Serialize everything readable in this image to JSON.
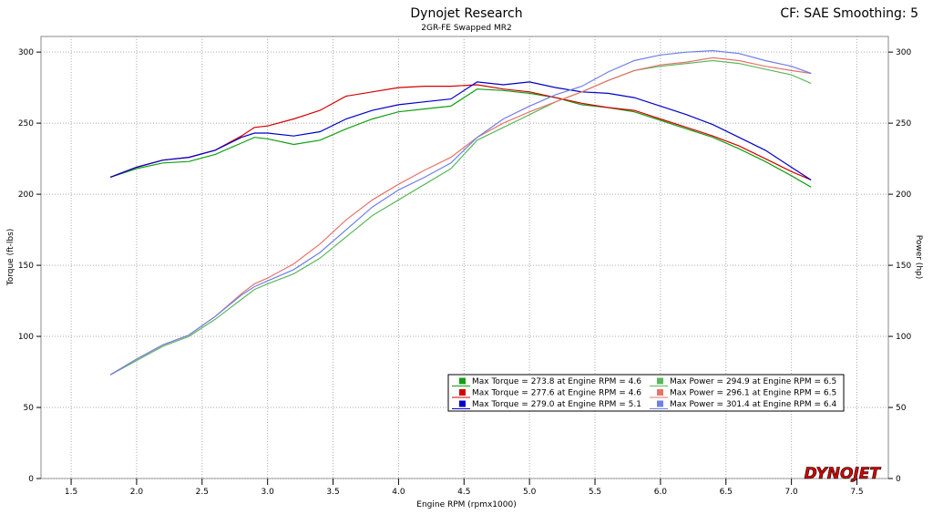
{
  "chart_data": {
    "type": "line",
    "title": "Dynojet Research",
    "subtitle": "2GR-FE Swapped MR2",
    "header_right": "CF: SAE Smoothing: 5",
    "watermark": "DYNOJET",
    "x_label": "Engine RPM (rpmx1000)",
    "y_label": "Torque (ft-lbs)",
    "y2_label": "Power (hp)",
    "xlim": [
      1.27,
      7.74
    ],
    "ylim": [
      0,
      311
    ],
    "y2lim": [
      0,
      311
    ],
    "xticks": [
      {
        "value": 1.5,
        "label": "1.5"
      },
      {
        "value": 2,
        "label": "2.0"
      },
      {
        "value": 2.5,
        "label": "2.5"
      },
      {
        "value": 3,
        "label": "3.0"
      },
      {
        "value": 3.5,
        "label": "3.5"
      },
      {
        "value": 4,
        "label": "4.0"
      },
      {
        "value": 4.5,
        "label": "4.5"
      },
      {
        "value": 5,
        "label": "5.0"
      },
      {
        "value": 5.5,
        "label": "5.5"
      },
      {
        "value": 6,
        "label": "6.0"
      },
      {
        "value": 6.5,
        "label": "6.5"
      },
      {
        "value": 7,
        "label": "7.0"
      },
      {
        "value": 7.5,
        "label": "7.5"
      }
    ],
    "yticks": [
      0,
      50,
      100,
      150,
      200,
      250,
      300
    ],
    "y2ticks": [
      0,
      50,
      100,
      150,
      200,
      250,
      300
    ],
    "grid": true,
    "legend": "bottom-right",
    "x": [
      1.8,
      2.0,
      2.2,
      2.4,
      2.6,
      2.8,
      2.9,
      3.0,
      3.2,
      3.4,
      3.6,
      3.8,
      4.0,
      4.2,
      4.4,
      4.6,
      4.8,
      5.0,
      5.2,
      5.4,
      5.6,
      5.8,
      6.0,
      6.2,
      6.4,
      6.6,
      6.8,
      7.0,
      7.15
    ],
    "series": [
      {
        "name": "Max Torque = 273.8 at Engine RPM = 4.6",
        "color": "#10a010",
        "axis": "y",
        "values": [
          212,
          218,
          222,
          223,
          228,
          236,
          240,
          239,
          235,
          238,
          246,
          253,
          258,
          260,
          262,
          274,
          273,
          271,
          268,
          263,
          261,
          258,
          252,
          246,
          240,
          232,
          223,
          213,
          205
        ]
      },
      {
        "name": "Max Torque = 277.6 at Engine RPM = 4.6",
        "color": "#d40000",
        "axis": "y",
        "values": [
          212,
          219,
          224,
          226,
          231,
          241,
          247,
          248,
          253,
          259,
          269,
          272,
          275,
          276,
          276,
          277,
          274,
          272,
          268,
          264,
          261,
          259,
          253,
          247,
          241,
          234,
          225,
          216,
          210
        ]
      },
      {
        "name": "Max Torque = 279.0 at Engine RPM = 5.1",
        "color": "#0000c8",
        "axis": "y",
        "values": [
          212,
          219,
          224,
          226,
          231,
          240,
          243,
          243,
          241,
          244,
          253,
          259,
          263,
          265,
          267,
          279,
          277,
          279,
          275,
          272,
          271,
          268,
          262,
          256,
          249,
          240,
          231,
          219,
          210
        ]
      },
      {
        "name": "Max Power = 294.9 at Engine RPM = 6.5",
        "color": "#5cb85c",
        "axis": "y2",
        "values": [
          73,
          83,
          93,
          100,
          112,
          126,
          133,
          137,
          144,
          155,
          170,
          185,
          196,
          207,
          218,
          238,
          247,
          256,
          265,
          272,
          280,
          287,
          290,
          292,
          294,
          292,
          288,
          284,
          278
        ]
      },
      {
        "name": "Max Power = 296.1 at Engine RPM = 6.5",
        "color": "#e8736b",
        "axis": "y2",
        "values": [
          73,
          84,
          94,
          101,
          114,
          130,
          137,
          141,
          151,
          165,
          182,
          196,
          207,
          217,
          226,
          240,
          250,
          258,
          265,
          272,
          280,
          287,
          291,
          293,
          296,
          294,
          290,
          287,
          285
        ]
      },
      {
        "name": "Max Power = 301.4 at Engine RPM = 6.4",
        "color": "#6f7fe8",
        "axis": "y2",
        "values": [
          73,
          84,
          94,
          101,
          114,
          129,
          135,
          139,
          147,
          159,
          175,
          191,
          203,
          212,
          222,
          240,
          253,
          262,
          270,
          276,
          286,
          294,
          298,
          300,
          301,
          299,
          294,
          290,
          285
        ]
      }
    ]
  }
}
